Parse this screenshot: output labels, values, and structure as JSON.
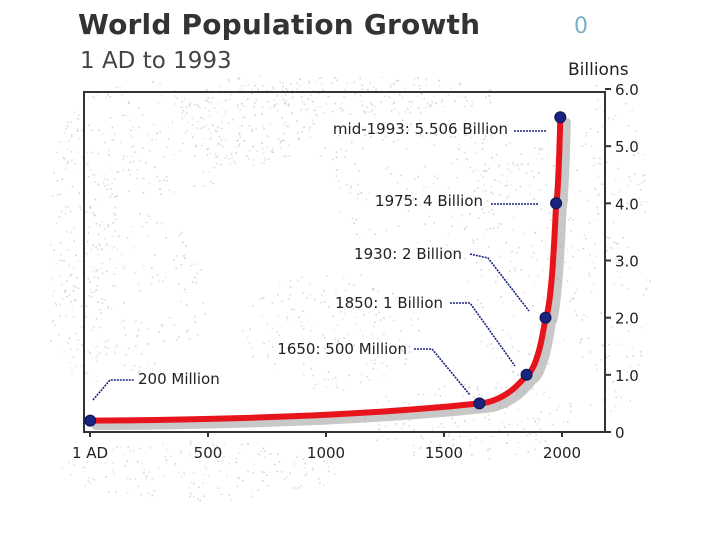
{
  "header": {
    "title": "World Population Growth",
    "subtitle": "1 AD to 1993",
    "corner_mark": "0",
    "unit_label": "Billions"
  },
  "colors": {
    "curve": "#e8141c",
    "points": "#1a237e",
    "frame": "#333333",
    "speckle": "#c8c8c8"
  },
  "chart_data": {
    "type": "line",
    "title": "World Population Growth",
    "subtitle": "1 AD to 1993",
    "xlabel": "",
    "ylabel": "Billions",
    "xlim": [
      0,
      2050
    ],
    "ylim": [
      0,
      6.0
    ],
    "x_ticks": [
      {
        "value": 0,
        "label": "1 AD"
      },
      {
        "value": 500,
        "label": "500"
      },
      {
        "value": 1000,
        "label": "1000"
      },
      {
        "value": 1500,
        "label": "1500"
      },
      {
        "value": 2000,
        "label": "2000"
      }
    ],
    "y_ticks": [
      {
        "value": 0,
        "label": "0"
      },
      {
        "value": 1.0,
        "label": "1.0"
      },
      {
        "value": 2.0,
        "label": "2.0"
      },
      {
        "value": 3.0,
        "label": "3.0"
      },
      {
        "value": 4.0,
        "label": "4.0"
      },
      {
        "value": 5.0,
        "label": "5.0"
      },
      {
        "value": 6.0,
        "label": "6.0"
      }
    ],
    "axis_position": "right",
    "grid": false,
    "series": [
      {
        "values": [
          {
            "x": 1,
            "y": 0.2
          },
          {
            "x": 1650,
            "y": 0.5
          },
          {
            "x": 1850,
            "y": 1.0
          },
          {
            "x": 1930,
            "y": 2.0
          },
          {
            "x": 1975,
            "y": 4.0
          },
          {
            "x": 1993,
            "y": 5.506
          }
        ]
      }
    ],
    "annotations": [
      {
        "x": 1,
        "y": 0.2,
        "text": "200 Million"
      },
      {
        "x": 1650,
        "y": 0.5,
        "text": "1650: 500 Million"
      },
      {
        "x": 1850,
        "y": 1.0,
        "text": "1850: 1 Billion"
      },
      {
        "x": 1930,
        "y": 2.0,
        "text": "1930: 2 Billion"
      },
      {
        "x": 1975,
        "y": 4.0,
        "text": "1975: 4 Billion"
      },
      {
        "x": 1993,
        "y": 5.506,
        "text": "mid-1993: 5.506 Billion"
      }
    ]
  }
}
